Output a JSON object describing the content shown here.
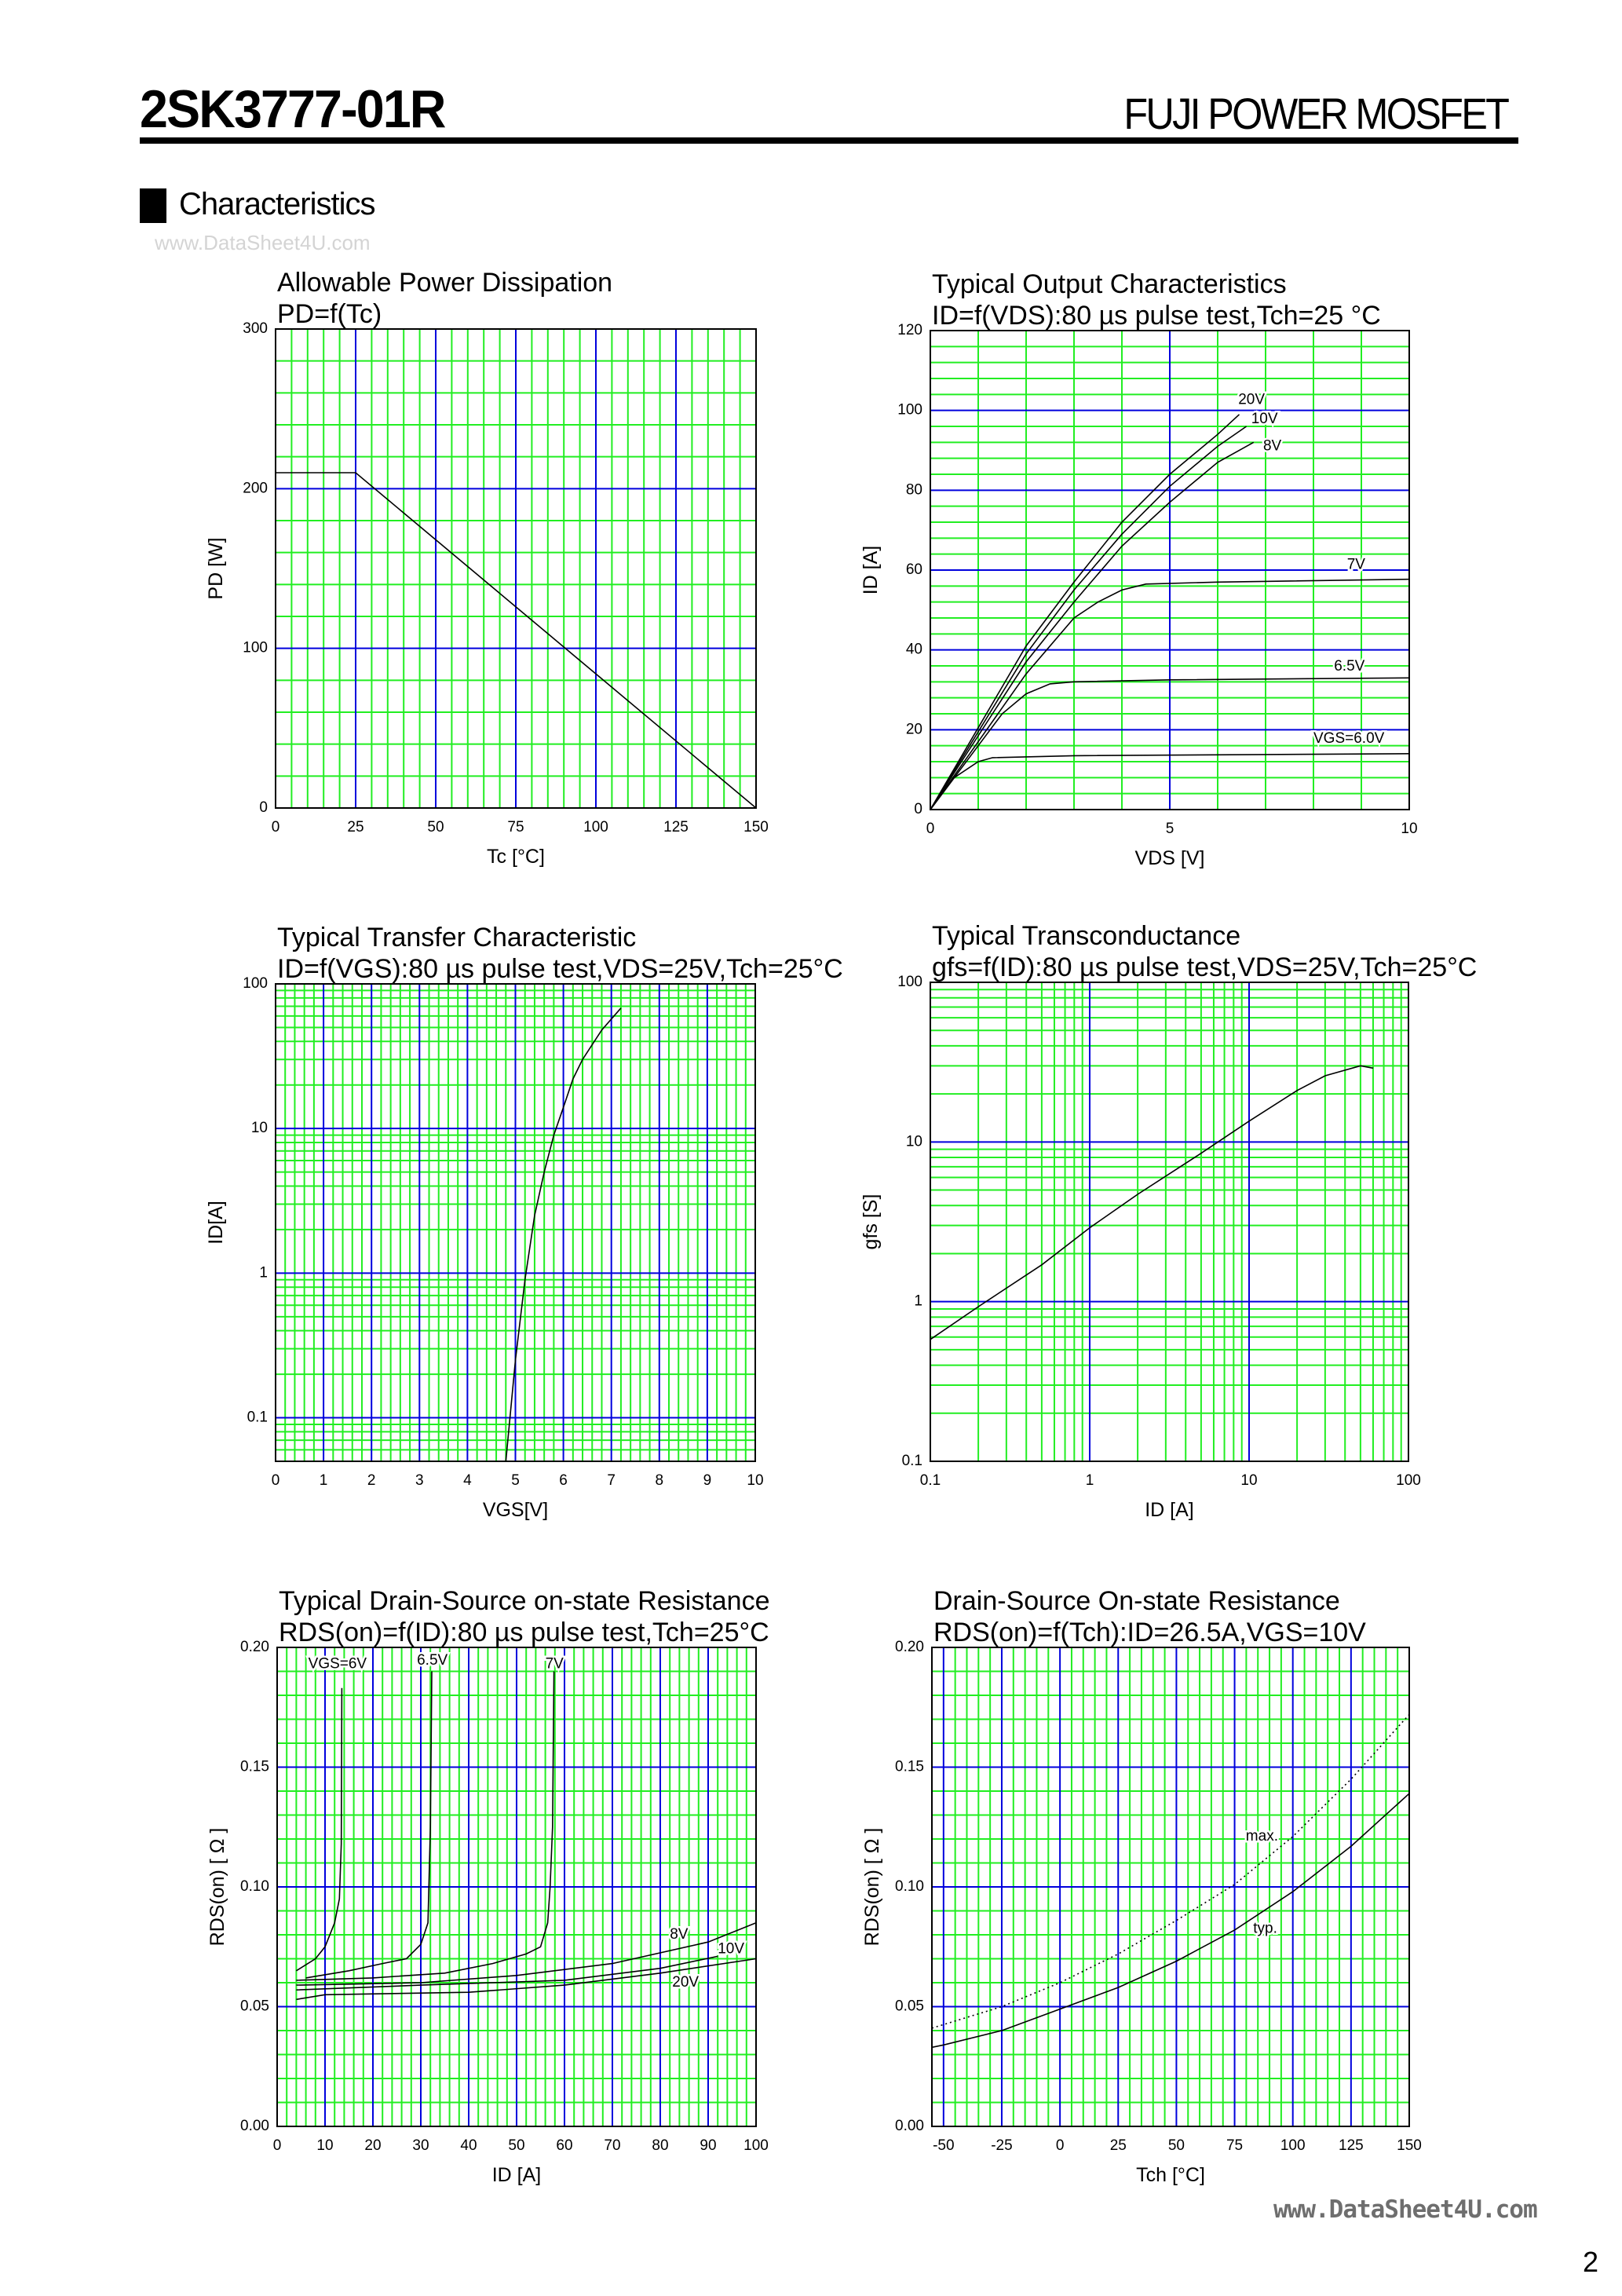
{
  "header": {
    "part_number": "2SK3777-01R",
    "brand": "FUJI POWER MOSFET"
  },
  "section": {
    "title": "Characteristics"
  },
  "watermark_top": "www.DataSheet4U.com",
  "watermark_bottom": "www.DataSheet4U.com",
  "page_number": "2",
  "colors": {
    "minor_grid": "#22ee22",
    "major_grid": "#0000dd",
    "curve": "#000000",
    "frame": "#000000"
  },
  "chart_data": [
    {
      "type": "line",
      "title": "Allowable Power Dissipation",
      "subtitle": "PD=f(Tc)",
      "xlabel": "Tc [°C]",
      "ylabel": "PD [W]",
      "xscale": "linear",
      "yscale": "linear",
      "xlim": [
        0,
        150
      ],
      "ylim": [
        0,
        300
      ],
      "grid": true,
      "x_minor": 5,
      "x_major": 25,
      "y_minor": 20,
      "y_major": 100,
      "x_ticks": [
        "0",
        "25",
        "50",
        "75",
        "100",
        "125",
        "150"
      ],
      "y_ticks": [
        "0",
        "100",
        "200",
        "300"
      ],
      "series": [
        {
          "style": "solid",
          "points": [
            [
              0,
              210
            ],
            [
              25,
              210
            ],
            [
              150,
              0
            ]
          ]
        }
      ]
    },
    {
      "type": "line",
      "title": "Typical Output Characteristics",
      "subtitle": "ID=f(VDS):80 µs pulse test,Tch=25 °C",
      "xlabel": "VDS [V]",
      "ylabel": "ID [A]",
      "xscale": "linear",
      "yscale": "linear",
      "xlim": [
        0,
        10
      ],
      "ylim": [
        0,
        120
      ],
      "grid": true,
      "x_minor": 1,
      "x_major": 5,
      "y_minor": 4,
      "y_major": 20,
      "x_ticks": [
        "0",
        "5",
        "10"
      ],
      "y_ticks": [
        "0",
        "20",
        "40",
        "60",
        "80",
        "100",
        "120"
      ],
      "series": [
        {
          "name": "20V",
          "style": "solid",
          "points": [
            [
              0,
              0
            ],
            [
              1,
              20.5
            ],
            [
              2,
              41
            ],
            [
              3,
              57
            ],
            [
              4,
              72
            ],
            [
              5,
              84
            ],
            [
              6,
              94
            ],
            [
              6.45,
              99
            ]
          ]
        },
        {
          "name": "10V",
          "style": "solid",
          "points": [
            [
              0,
              0
            ],
            [
              1,
              19.5
            ],
            [
              2,
              39
            ],
            [
              3,
              55
            ],
            [
              4,
              69
            ],
            [
              5,
              81
            ],
            [
              6,
              91
            ],
            [
              6.6,
              96
            ]
          ]
        },
        {
          "name": "8V",
          "style": "solid",
          "points": [
            [
              0,
              0
            ],
            [
              1,
              18.5
            ],
            [
              2,
              37
            ],
            [
              3,
              52
            ],
            [
              4,
              66
            ],
            [
              5,
              77
            ],
            [
              6,
              87
            ],
            [
              6.75,
              92
            ]
          ]
        },
        {
          "name": "7V",
          "style": "solid",
          "points": [
            [
              0,
              0
            ],
            [
              1,
              17
            ],
            [
              2,
              34
            ],
            [
              3,
              48
            ],
            [
              3.5,
              52
            ],
            [
              4,
              55
            ],
            [
              4.5,
              56.5
            ],
            [
              6,
              57
            ],
            [
              10,
              57.7
            ]
          ]
        },
        {
          "name": "6.5V",
          "style": "solid",
          "points": [
            [
              0,
              0
            ],
            [
              1,
              16
            ],
            [
              1.5,
              24
            ],
            [
              2,
              29
            ],
            [
              2.5,
              31.5
            ],
            [
              3,
              32
            ],
            [
              5,
              32.5
            ],
            [
              10,
              33
            ]
          ]
        },
        {
          "name": "VGS=6.0V",
          "style": "solid",
          "points": [
            [
              0,
              0
            ],
            [
              0.5,
              8
            ],
            [
              1,
              12
            ],
            [
              1.3,
              13
            ],
            [
              3,
              13.5
            ],
            [
              10,
              14
            ]
          ]
        }
      ]
    },
    {
      "type": "line",
      "title": "Typical Transfer Characteristic",
      "subtitle": "ID=f(VGS):80 µs pulse test,VDS=25V,Tch=25°C",
      "xlabel": "VGS[V]",
      "ylabel": "ID[A]",
      "xscale": "linear",
      "yscale": "log",
      "xlim": [
        0,
        10
      ],
      "ylim": [
        0.05,
        100
      ],
      "grid": true,
      "x_minor": 0.2,
      "x_major": 1,
      "x_ticks": [
        "0",
        "1",
        "2",
        "3",
        "4",
        "5",
        "6",
        "7",
        "8",
        "9",
        "10"
      ],
      "y_ticks": [
        "0.1",
        "1",
        "10",
        "100"
      ],
      "series": [
        {
          "style": "solid",
          "points": [
            [
              4.8,
              0.05
            ],
            [
              5.0,
              0.25
            ],
            [
              5.2,
              0.9
            ],
            [
              5.4,
              2.5
            ],
            [
              5.6,
              5
            ],
            [
              5.8,
              9
            ],
            [
              6.0,
              14
            ],
            [
              6.2,
              22
            ],
            [
              6.4,
              30
            ],
            [
              6.8,
              48
            ],
            [
              7.2,
              68
            ]
          ]
        }
      ]
    },
    {
      "type": "line",
      "title": "Typical Transconductance",
      "subtitle": "gfs=f(ID):80 µs pulse test,VDS=25V,Tch=25°C",
      "xlabel": "ID [A]",
      "ylabel": "gfs [S]",
      "xscale": "log",
      "yscale": "log",
      "xlim": [
        0.1,
        100
      ],
      "ylim": [
        0.1,
        100
      ],
      "grid": true,
      "x_ticks": [
        "0.1",
        "1",
        "10",
        "100"
      ],
      "y_ticks": [
        "0.1",
        "1",
        "10",
        "100"
      ],
      "series": [
        {
          "style": "solid",
          "points": [
            [
              0.1,
              0.58
            ],
            [
              0.2,
              0.93
            ],
            [
              0.5,
              1.7
            ],
            [
              1,
              2.9
            ],
            [
              2,
              4.7
            ],
            [
              5,
              8.5
            ],
            [
              10,
              13.5
            ],
            [
              20,
              21
            ],
            [
              30,
              26
            ],
            [
              50,
              30
            ],
            [
              60,
              29
            ]
          ]
        }
      ]
    },
    {
      "type": "line",
      "title": "Typical Drain-Source on-state Resistance",
      "subtitle": "RDS(on)=f(ID):80  µs pulse test,Tch=25°C",
      "xlabel": "ID [A]",
      "ylabel": "RDS(on) [ Ω ]",
      "xscale": "linear",
      "yscale": "linear",
      "xlim": [
        0,
        100
      ],
      "ylim": [
        0,
        0.2
      ],
      "grid": true,
      "x_minor": 2,
      "x_major": 10,
      "y_minor": 0.01,
      "y_major": 0.05,
      "x_ticks": [
        "0",
        "10",
        "20",
        "30",
        "40",
        "50",
        "60",
        "70",
        "80",
        "90",
        "100"
      ],
      "y_ticks": [
        "0.00",
        "0.05",
        "0.10",
        "0.15",
        "0.20"
      ],
      "series": [
        {
          "name": "VGS=6V",
          "style": "solid",
          "points": [
            [
              4,
              0.065
            ],
            [
              8,
              0.07
            ],
            [
              10,
              0.075
            ],
            [
              12,
              0.085
            ],
            [
              13,
              0.095
            ],
            [
              13.4,
              0.118
            ],
            [
              13.5,
              0.183
            ]
          ]
        },
        {
          "name": "6.5V",
          "style": "solid",
          "points": [
            [
              6,
              0.062
            ],
            [
              15,
              0.065
            ],
            [
              22,
              0.068
            ],
            [
              27,
              0.07
            ],
            [
              30,
              0.076
            ],
            [
              31.5,
              0.085
            ],
            [
              32,
              0.125
            ],
            [
              32.3,
              0.19
            ]
          ]
        },
        {
          "name": "7V",
          "style": "solid",
          "points": [
            [
              4,
              0.061
            ],
            [
              20,
              0.062
            ],
            [
              35,
              0.064
            ],
            [
              45,
              0.068
            ],
            [
              52,
              0.072
            ],
            [
              55,
              0.075
            ],
            [
              56.5,
              0.085
            ],
            [
              57,
              0.1
            ],
            [
              57.5,
              0.125
            ],
            [
              57.8,
              0.19
            ]
          ]
        },
        {
          "name": "8V",
          "style": "solid",
          "points": [
            [
              4,
              0.059
            ],
            [
              30,
              0.06
            ],
            [
              50,
              0.063
            ],
            [
              70,
              0.068
            ],
            [
              90,
              0.077
            ],
            [
              100,
              0.085
            ]
          ]
        },
        {
          "name": "10V",
          "style": "solid",
          "points": [
            [
              4,
              0.057
            ],
            [
              30,
              0.059
            ],
            [
              60,
              0.061
            ],
            [
              80,
              0.066
            ],
            [
              92,
              0.071
            ]
          ]
        },
        {
          "name": "20V",
          "style": "solid",
          "points": [
            [
              4,
              0.053
            ],
            [
              10,
              0.055
            ],
            [
              40,
              0.056
            ],
            [
              60,
              0.059
            ],
            [
              80,
              0.064
            ],
            [
              100,
              0.07
            ]
          ]
        }
      ]
    },
    {
      "type": "line",
      "title": "Drain-Source On-state Resistance",
      "subtitle": "RDS(on)=f(Tch):ID=26.5A,VGS=10V",
      "xlabel": "Tch [°C]",
      "ylabel": "RDS(on) [ Ω ]",
      "xscale": "linear",
      "yscale": "linear",
      "xlim": [
        -55,
        150
      ],
      "ylim": [
        0,
        0.2
      ],
      "grid": true,
      "x_minor": 5,
      "x_major": 25,
      "y_minor": 0.01,
      "y_major": 0.05,
      "x_ticks": [
        "-50",
        "-25",
        "0",
        "25",
        "50",
        "75",
        "100",
        "125",
        "150"
      ],
      "y_ticks": [
        "0.00",
        "0.05",
        "0.10",
        "0.15",
        "0.20"
      ],
      "series": [
        {
          "name": "max.",
          "style": "dotted",
          "points": [
            [
              -55,
              0.041
            ],
            [
              -25,
              0.05
            ],
            [
              0,
              0.06
            ],
            [
              25,
              0.072
            ],
            [
              50,
              0.086
            ],
            [
              75,
              0.101
            ],
            [
              100,
              0.121
            ],
            [
              125,
              0.145
            ],
            [
              150,
              0.172
            ]
          ]
        },
        {
          "name": "typ.",
          "style": "solid",
          "points": [
            [
              -55,
              0.033
            ],
            [
              -50,
              0.034
            ],
            [
              -25,
              0.04
            ],
            [
              0,
              0.049
            ],
            [
              25,
              0.058
            ],
            [
              50,
              0.069
            ],
            [
              75,
              0.082
            ],
            [
              100,
              0.098
            ],
            [
              125,
              0.117
            ],
            [
              150,
              0.139
            ]
          ]
        }
      ]
    }
  ]
}
